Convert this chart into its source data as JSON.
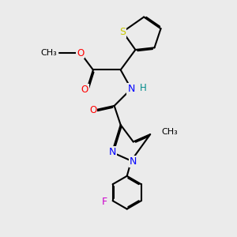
{
  "bg_color": "#ebebeb",
  "S_color": "#c8c800",
  "O_color": "#ff0000",
  "N_color": "#0000ff",
  "F_color": "#cc00cc",
  "C_color": "#000000",
  "bond_color": "#000000",
  "lw": 1.5,
  "dbo": 0.055,
  "fs": 8.5,
  "xlim": [
    0,
    10
  ],
  "ylim": [
    0,
    11
  ]
}
